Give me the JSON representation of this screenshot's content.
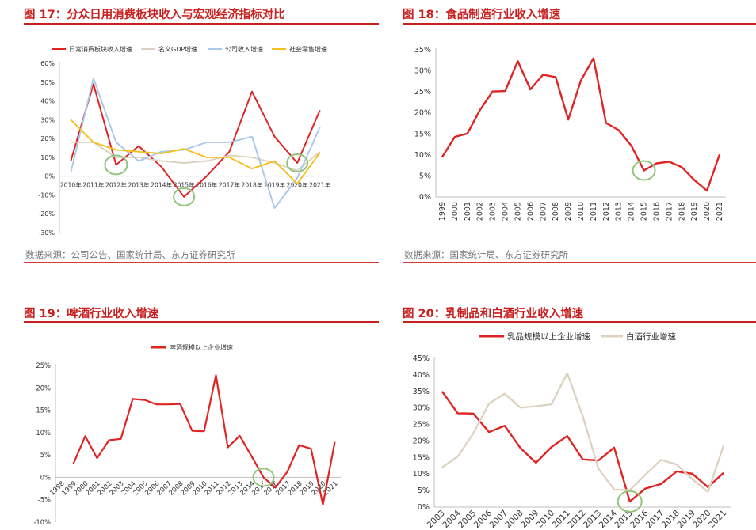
{
  "panels": [
    {
      "title": "图 17：分众日用消费板块收入与宏观经济指标对比",
      "source": "数据来源：公司公告、国家统计局、东方证券研究所"
    },
    {
      "title": "图 18：食品制造行业收入增速",
      "source": "数据来源：国家统计局、东方证券研究所"
    },
    {
      "title": "图 19：啤酒行业收入增速",
      "source": ""
    },
    {
      "title": "图 20：乳制品和白酒行业收入增速",
      "source": ""
    }
  ],
  "chart_data": [
    {
      "type": "line",
      "categories": [
        "2010年",
        "2011年",
        "2012年",
        "2013年",
        "2014年",
        "2015年",
        "2016年",
        "2017年",
        "2018年",
        "2019年",
        "2020年",
        "2021年"
      ],
      "yticks": [
        "60%",
        "50%",
        "40%",
        "30%",
        "20%",
        "10%",
        "0%",
        "-10%",
        "-20%",
        "-30%"
      ],
      "ylim": [
        -30,
        60
      ],
      "legend_position": "top",
      "series": [
        {
          "name": "日常消费板块收入增速",
          "color": "#e02424",
          "values": [
            8,
            49,
            6,
            16,
            5,
            -11,
            0,
            13,
            45,
            21,
            7,
            35
          ]
        },
        {
          "name": "名义GDP增速",
          "color": "#ddd2bf",
          "values": [
            18,
            18,
            10,
            10,
            8,
            7,
            8,
            11,
            10,
            7,
            3,
            13
          ]
        },
        {
          "name": "公司收入增速",
          "color": "#a9c8ea",
          "values": [
            2,
            52,
            18,
            8,
            13,
            14,
            18,
            18,
            21,
            -17,
            -1,
            26
          ]
        },
        {
          "name": "社会零售增速",
          "color": "#f5bf1f",
          "values": [
            30,
            18,
            14,
            13,
            12,
            14.5,
            10,
            10,
            4,
            8,
            -4,
            12.5
          ]
        }
      ],
      "markers_color": "#92c47d"
    },
    {
      "type": "line",
      "categories": [
        "1999",
        "2000",
        "2001",
        "2002",
        "2003",
        "2004",
        "2005",
        "2006",
        "2007",
        "2008",
        "2009",
        "2010",
        "2011",
        "2012",
        "2013",
        "2014",
        "2015",
        "2016",
        "2017",
        "2018",
        "2019",
        "2020",
        "2021"
      ],
      "yticks": [
        "35%",
        "30%",
        "25%",
        "20%",
        "15%",
        "10%",
        "5%",
        "0%"
      ],
      "ylim": [
        0,
        35
      ],
      "series": [
        {
          "color": "#e02424",
          "values": [
            9.5,
            14.3,
            15.1,
            20.7,
            25.1,
            25.2,
            32.3,
            25.6,
            29.1,
            28.5,
            18.4,
            27.7,
            33,
            17.6,
            15.9,
            12.2,
            6.3,
            8,
            8.4,
            7.1,
            4,
            1.5,
            10.1
          ]
        }
      ],
      "markers_color": "#92c47d"
    },
    {
      "type": "line",
      "categories": [
        "1998",
        "1999",
        "2000",
        "2001",
        "2002",
        "2003",
        "2004",
        "2005",
        "2006",
        "2007",
        "2008",
        "2009",
        "2010",
        "2011",
        "2012",
        "2013",
        "2014",
        "2015",
        "2016",
        "2017",
        "2018",
        "2019",
        "2020",
        "2021"
      ],
      "yticks": [
        "25%",
        "20%",
        "15%",
        "10%",
        "5%",
        "0%",
        "-5%",
        "-10%"
      ],
      "ylim": [
        -10,
        25
      ],
      "legend_position": "top",
      "series": [
        {
          "name": "啤酒规模以上企业增速",
          "color": "#e02424",
          "values": [
            null,
            3,
            9.2,
            4.3,
            8.3,
            8.6,
            17.5,
            17.3,
            16.3,
            16.3,
            16.4,
            10.4,
            10.3,
            22.8,
            6.7,
            9.3,
            4.7,
            0,
            -2.3,
            1.2,
            7.2,
            6.4,
            -6.1,
            7.9
          ]
        }
      ],
      "markers_color": "#92c47d"
    },
    {
      "type": "line",
      "categories": [
        "2003",
        "2004",
        "2005",
        "2006",
        "2007",
        "2008",
        "2009",
        "2010",
        "2011",
        "2012",
        "2013",
        "2014",
        "2015",
        "2016",
        "2017",
        "2018",
        "2019",
        "2020",
        "2021"
      ],
      "yticks": [
        "45%",
        "40%",
        "35%",
        "30%",
        "25%",
        "20%",
        "15%",
        "10%",
        "5%",
        "0%"
      ],
      "ylim": [
        0,
        45
      ],
      "legend_position": "top",
      "series": [
        {
          "name": "乳品规模以上企业增速",
          "color": "#e02424",
          "values": [
            35,
            28.4,
            28.3,
            22.7,
            24.6,
            17.9,
            13.4,
            18.2,
            21.5,
            14.4,
            14.1,
            18,
            1.7,
            5.6,
            7,
            10.8,
            10.1,
            6,
            10.4
          ]
        },
        {
          "name": "白酒行业增速",
          "color": "#ddd2bf",
          "values": [
            12,
            15.3,
            22.3,
            31.3,
            34.3,
            30.1,
            30.5,
            31.1,
            40.5,
            27.4,
            11.6,
            5.3,
            5.1,
            9.8,
            14.3,
            12.9,
            8.4,
            4.6,
            18.6
          ]
        }
      ],
      "markers_color": "#92c47d"
    }
  ]
}
